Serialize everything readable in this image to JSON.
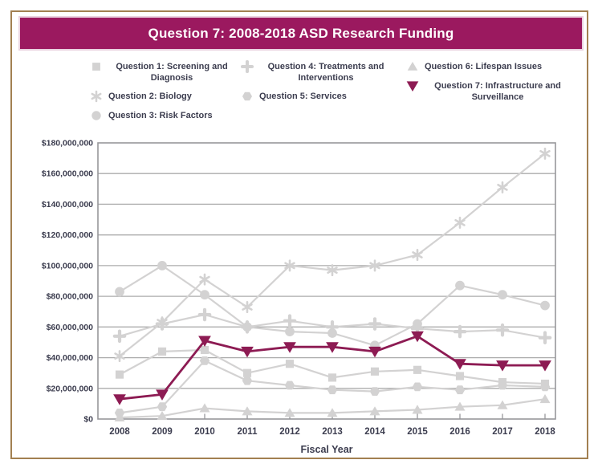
{
  "title": "Question 7: 2008-2018 ASD Research Funding",
  "colors": {
    "title_bar": "#9B195F",
    "title_text": "#FFFFFF",
    "frame_border": "#A28051",
    "text_dark": "#3C3D4F",
    "grid_line": "#ACACAC",
    "axis_border": "#97979B",
    "series_gray": "#D3D2D2",
    "q7_accent": "#8D1B53"
  },
  "legend": {
    "columns": [
      [
        0,
        1,
        2
      ],
      [
        3,
        4
      ],
      [
        5,
        6
      ]
    ]
  },
  "chart_data": {
    "type": "line",
    "title": "Question 7: 2008-2018 ASD Research Funding",
    "xlabel": "Fiscal Year",
    "ylabel": "",
    "x": [
      2008,
      2009,
      2010,
      2011,
      2012,
      2013,
      2014,
      2015,
      2016,
      2017,
      2018
    ],
    "ylim": [
      0,
      180000000
    ],
    "ytick_step": 20000000,
    "ytick_labels": [
      "$0",
      "$20,000,000",
      "$40,000,000",
      "$60,000,000",
      "$80,000,000",
      "$100,000,000",
      "$120,000,000",
      "$140,000,000",
      "$160,000,000",
      "$180,000,000"
    ],
    "grid": true,
    "legend_position": "top",
    "series": [
      {
        "name": "Question 1: Screening and Diagnosis",
        "marker": "square",
        "color": "#D3D2D2",
        "values": [
          29000000,
          44000000,
          45000000,
          30000000,
          36000000,
          27000000,
          31000000,
          32000000,
          28000000,
          24000000,
          23000000
        ]
      },
      {
        "name": "Question 2: Biology",
        "marker": "asterisk",
        "color": "#D3D2D2",
        "values": [
          41000000,
          63000000,
          91000000,
          73000000,
          100000000,
          97000000,
          100000000,
          107000000,
          128000000,
          151000000,
          173000000
        ]
      },
      {
        "name": "Question 3: Risk Factors",
        "marker": "circle",
        "color": "#D3D2D2",
        "values": [
          83000000,
          100000000,
          81000000,
          60000000,
          57000000,
          56000000,
          48000000,
          62000000,
          87000000,
          81000000,
          74000000
        ]
      },
      {
        "name": "Question 4: Treatments and Interventions",
        "marker": "plus",
        "color": "#D3D2D2",
        "values": [
          54000000,
          62000000,
          68000000,
          60000000,
          64000000,
          60000000,
          62000000,
          59000000,
          57000000,
          58000000,
          53000000
        ]
      },
      {
        "name": "Question 5: Services",
        "marker": "hexagon",
        "color": "#D3D2D2",
        "values": [
          4000000,
          8000000,
          38000000,
          25000000,
          22000000,
          19000000,
          18000000,
          21000000,
          19000000,
          22000000,
          21000000
        ]
      },
      {
        "name": "Question 6: Lifespan Issues",
        "marker": "triangle-up",
        "color": "#D3D2D2",
        "values": [
          1000000,
          2000000,
          7000000,
          5000000,
          4000000,
          4000000,
          5000000,
          6000000,
          8000000,
          9000000,
          13000000
        ]
      },
      {
        "name": "Question 7: Infrastructure and Surveillance",
        "marker": "triangle-down",
        "color": "#8D1B53",
        "accent": true,
        "values": [
          13000000,
          16000000,
          51000000,
          44000000,
          47000000,
          47000000,
          44000000,
          54000000,
          36000000,
          35000000,
          35000000
        ]
      }
    ]
  }
}
